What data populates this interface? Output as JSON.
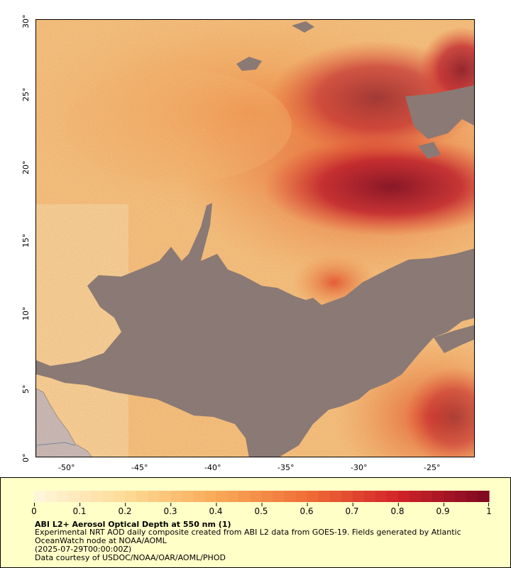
{
  "map": {
    "x_ticks": [
      "-50°",
      "-45°",
      "-40°",
      "-35°",
      "-30°",
      "-25°"
    ],
    "y_ticks": [
      "30°",
      "25°",
      "20°",
      "15°",
      "10°",
      "5°",
      "0°"
    ],
    "colors": {
      "no_data": "#808080",
      "land": "#c8c8c8",
      "aod_low": "#fde3a7",
      "aod_mid": "#f6a050",
      "aod_high": "#8b0a25"
    }
  },
  "legend": {
    "scale_labels": [
      "0",
      "0.1",
      "0.2",
      "0.3",
      "0.4",
      "0.5",
      "0.6",
      "0.7",
      "0.8",
      "0.9",
      "1"
    ],
    "title": "ABI L2+ Aerosol Optical Depth at 550 nm (1)",
    "line1": "Experimental NRT AOD daily composite created from ABI L2 data from GOES-19. Fields generated by Atlantic",
    "line2": "OceanWatch node at NOAA/AOML",
    "line3": "(2025-07-29T00:00:00Z)",
    "line4": "Data courtesy of USDOC/NOAA/OAR/AOML/PHOD"
  }
}
